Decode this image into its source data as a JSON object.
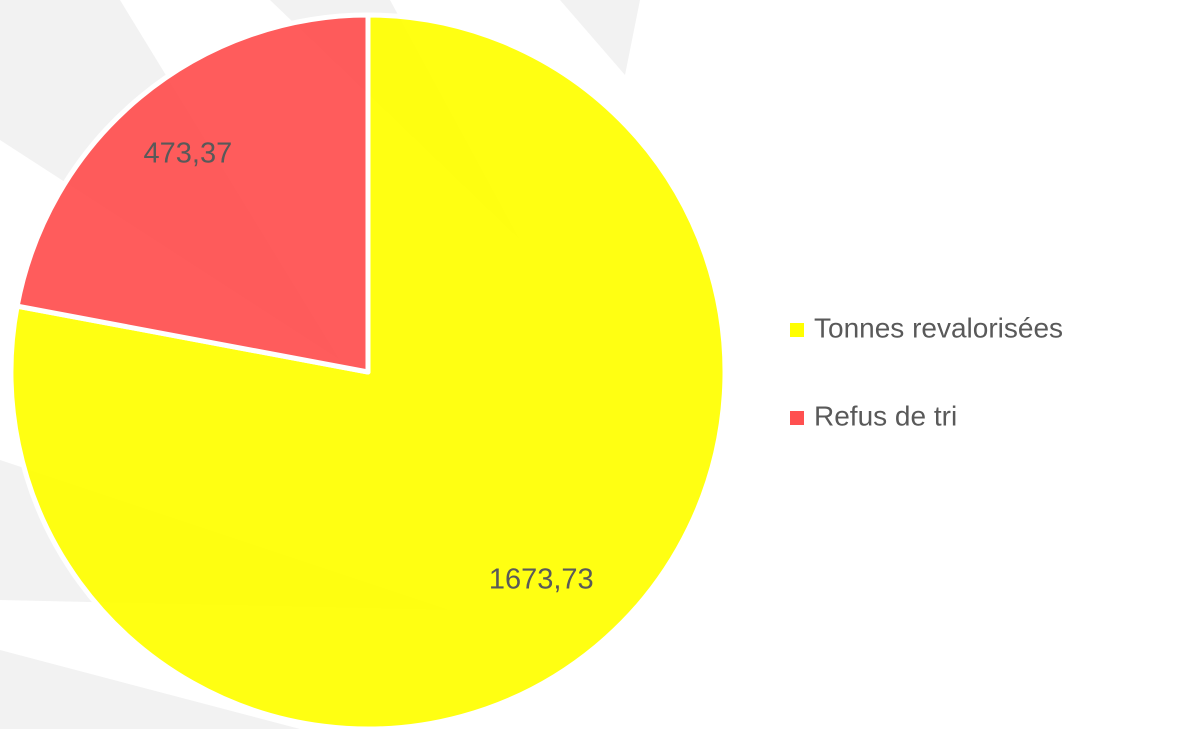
{
  "chart_data": {
    "type": "pie",
    "categories": [
      "Tonnes revalorisées",
      "Refus de tri"
    ],
    "values": [
      1673.73,
      473.37
    ],
    "value_labels": [
      "1673,73",
      "473,37"
    ],
    "colors": [
      "#ffff00",
      "#ff5050"
    ]
  }
}
